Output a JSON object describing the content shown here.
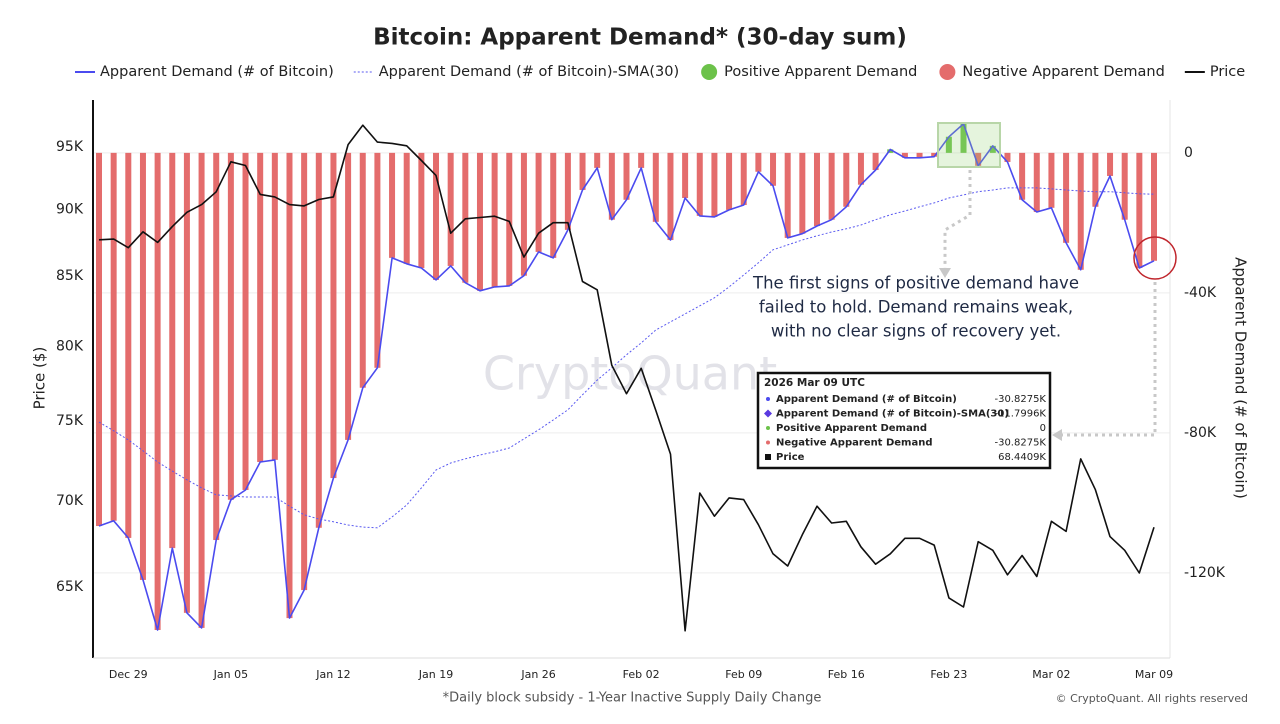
{
  "chart_data": {
    "type": "combo",
    "title": "Bitcoin: Apparent Demand* (30-day sum)",
    "y_label": "Price ($)",
    "y2_label": "Apparent Demand (# of Bitcoin)",
    "footnote": "*Daily block subsidy - 1-Year Inactive Supply Daily Change",
    "copyright": "© CryptoQuant. All rights reserved",
    "watermark": "CryptoQuant",
    "annotation": [
      "The first signs of positive demand have",
      "failed to hold. Demand remains weak,",
      "with no clear signs of recovery yet."
    ],
    "categories": [
      null,
      null,
      "Dec 29",
      null,
      null,
      null,
      null,
      null,
      null,
      "Jan 05",
      null,
      null,
      null,
      null,
      null,
      null,
      "Jan 12",
      null,
      null,
      null,
      null,
      null,
      null,
      "Jan 19",
      null,
      null,
      null,
      null,
      null,
      null,
      "Jan 26",
      null,
      null,
      null,
      null,
      null,
      null,
      "Feb 02",
      null,
      null,
      null,
      null,
      null,
      null,
      "Feb 09",
      null,
      null,
      null,
      null,
      null,
      null,
      "Feb 16",
      null,
      null,
      null,
      null,
      null,
      null,
      "Feb 23",
      null,
      null,
      null,
      null,
      null,
      null,
      "Mar 02",
      null,
      null,
      null,
      null,
      null,
      null,
      "Mar 09"
    ],
    "yscale": "log",
    "ylim": [
      61150,
      98930
    ],
    "yticks": [
      {
        "value": 65000,
        "label": "65K"
      },
      {
        "value": 70000,
        "label": "70K"
      },
      {
        "value": 75000,
        "label": "75K"
      },
      {
        "value": 80000,
        "label": "80K"
      },
      {
        "value": 85000,
        "label": "85K"
      },
      {
        "value": 90000,
        "label": "90K"
      },
      {
        "value": 95000,
        "label": "95K"
      }
    ],
    "y2lim": [
      -144300,
      15100
    ],
    "y2ticks": [
      {
        "value": -120000,
        "label": "-120K"
      },
      {
        "value": -80000,
        "label": "-80K"
      },
      {
        "value": -40000,
        "label": "-40K"
      },
      0
    ],
    "grid": true,
    "legend": "top",
    "series": [
      {
        "name": "Apparent Demand (# of Bitcoin)",
        "type": "line",
        "axis": "y2",
        "color": "#4b4bef",
        "values": [
          -106600,
          -105100,
          -110000,
          -122000,
          -136300,
          -112900,
          -131400,
          -135700,
          -110600,
          -99100,
          -96300,
          -88300,
          -87700,
          -132900,
          -124900,
          -107100,
          -92900,
          -82000,
          -67100,
          -61400,
          -30000,
          -31700,
          -32900,
          -36300,
          -32300,
          -37100,
          -39400,
          -38300,
          -38000,
          -35100,
          -28300,
          -30000,
          -22000,
          -10600,
          -4300,
          -19100,
          -13400,
          -4300,
          -19700,
          -24900,
          -12900,
          -18000,
          -18300,
          -16300,
          -14900,
          -5400,
          -9400,
          -24300,
          -23100,
          -20900,
          -19100,
          -15400,
          -9100,
          -4900,
          1000,
          -1400,
          -1400,
          -1100,
          4600,
          8300,
          -3700,
          2000,
          -2600,
          -13400,
          -16900,
          -15700,
          -25700,
          -33400,
          -15400,
          -6600,
          -19100,
          -32900,
          -30827.5
        ]
      },
      {
        "name": "Apparent Demand (# of Bitcoin)-SMA(30)",
        "type": "line",
        "dash": true,
        "axis": "y2",
        "color": "#5a5af0",
        "values": [
          -76900,
          -79400,
          -82000,
          -85100,
          -88300,
          -90900,
          -93400,
          -95700,
          -97700,
          -98000,
          -98300,
          -98300,
          -98300,
          -100900,
          -103400,
          -104600,
          -105400,
          -106300,
          -106900,
          -107100,
          -104000,
          -100600,
          -95700,
          -90600,
          -88600,
          -87400,
          -86300,
          -85400,
          -84300,
          -81700,
          -79100,
          -76300,
          -73400,
          -69100,
          -64900,
          -61400,
          -57700,
          -54300,
          -50600,
          -48300,
          -46000,
          -43700,
          -41400,
          -38300,
          -34900,
          -31400,
          -27700,
          -26300,
          -24900,
          -23700,
          -22600,
          -21700,
          -20600,
          -19100,
          -17700,
          -16600,
          -15400,
          -14300,
          -12900,
          -12000,
          -11100,
          -10600,
          -10000,
          -10000,
          -10000,
          -10300,
          -10600,
          -10900,
          -11100,
          -11100,
          -11400,
          -11700,
          -11799.6
        ]
      },
      {
        "name": "Positive Apparent Demand",
        "type": "bar",
        "axis": "y2",
        "color": "#6cc24a",
        "values": [
          0,
          0,
          0,
          0,
          0,
          0,
          0,
          0,
          0,
          0,
          0,
          0,
          0,
          0,
          0,
          0,
          0,
          0,
          0,
          0,
          0,
          0,
          0,
          0,
          0,
          0,
          0,
          0,
          0,
          0,
          0,
          0,
          0,
          0,
          0,
          0,
          0,
          0,
          0,
          0,
          0,
          0,
          0,
          0,
          0,
          0,
          0,
          0,
          0,
          0,
          0,
          0,
          0,
          0,
          1000,
          0,
          0,
          0,
          4600,
          8300,
          0,
          2000,
          0,
          0,
          0,
          0,
          0,
          0,
          0,
          0,
          0,
          0,
          0
        ]
      },
      {
        "name": "Negative Apparent Demand",
        "type": "bar",
        "axis": "y2",
        "color": "#e46c6c",
        "values": [
          -106600,
          -105100,
          -110000,
          -122000,
          -136300,
          -112900,
          -131400,
          -135700,
          -110600,
          -99100,
          -96300,
          -88300,
          -87700,
          -132900,
          -124900,
          -107100,
          -92900,
          -82000,
          -67100,
          -61400,
          -30000,
          -31700,
          -32900,
          -36300,
          -32300,
          -37100,
          -39400,
          -38300,
          -38000,
          -35100,
          -28300,
          -30000,
          -22000,
          -10600,
          -4300,
          -19100,
          -13400,
          -4300,
          -19700,
          -24900,
          -12900,
          -18000,
          -18300,
          -16300,
          -14900,
          -5400,
          -9400,
          -24300,
          -23100,
          -20900,
          -19100,
          -15400,
          -9100,
          -4900,
          0,
          -1400,
          -1400,
          -1100,
          0,
          0,
          -3700,
          0,
          -2600,
          -13400,
          -16900,
          -15700,
          -25700,
          -33400,
          -15400,
          -6600,
          -19100,
          -32900,
          -30827.5
        ]
      },
      {
        "name": "Price",
        "type": "line",
        "axis": "y",
        "color": "#111111",
        "values": [
          87700,
          87750,
          87100,
          88300,
          87500,
          88700,
          89800,
          90400,
          91400,
          93800,
          93500,
          91200,
          91000,
          90400,
          90300,
          90800,
          91000,
          95200,
          96800,
          95400,
          95300,
          95100,
          93900,
          92700,
          88200,
          89300,
          89400,
          89500,
          89100,
          86400,
          88200,
          89000,
          89000,
          84600,
          84000,
          78700,
          76800,
          78500,
          75700,
          72900,
          62600,
          70500,
          69100,
          70200,
          70100,
          68600,
          66900,
          66200,
          68000,
          69700,
          68700,
          68800,
          67300,
          66300,
          66900,
          67800,
          67800,
          67400,
          64400,
          63900,
          67600,
          67100,
          65700,
          66800,
          65600,
          68800,
          68200,
          72600,
          70700,
          67900,
          67100,
          65800,
          68440.9
        ]
      }
    ],
    "tooltip": {
      "title": "2026 Mar 09 UTC",
      "items": [
        {
          "name": "Apparent Demand (# of Bitcoin)",
          "value": "-30.8275K"
        },
        {
          "name": "Apparent Demand (# of Bitcoin)-SMA(30)",
          "value": "-11.7996K"
        },
        {
          "name": "Positive Apparent Demand",
          "value": "0"
        },
        {
          "name": "Negative Apparent Demand",
          "value": "-30.8275K"
        },
        {
          "name": "Price",
          "value": "68.4409K"
        }
      ]
    }
  }
}
